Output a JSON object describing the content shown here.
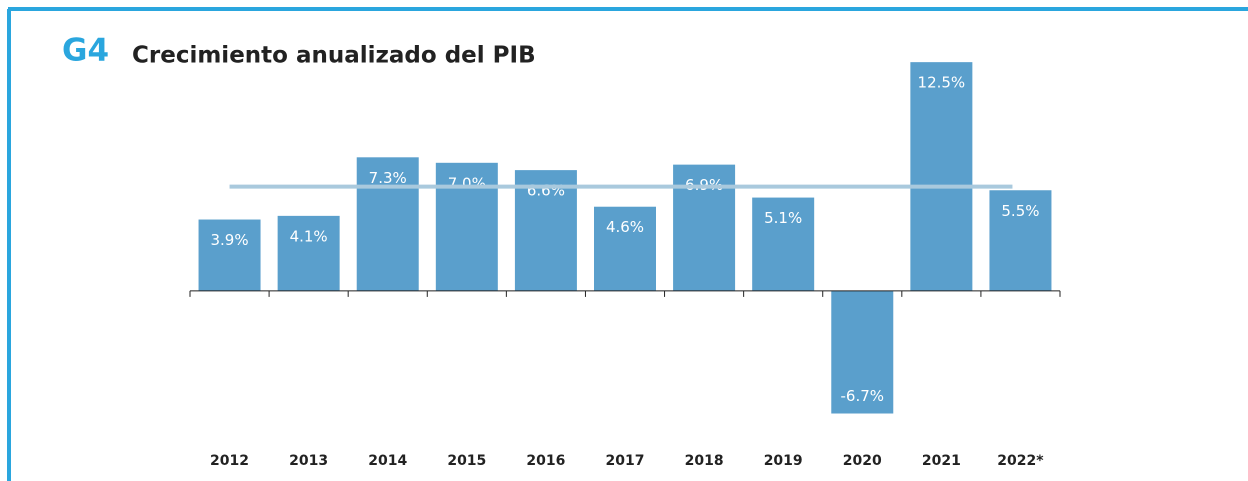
{
  "chart_data": {
    "type": "bar",
    "label": "G4",
    "title": "Crecimiento anualizado del PIB",
    "categories": [
      "2012",
      "2013",
      "2014",
      "2015",
      "2016",
      "2017",
      "2018",
      "2019",
      "2020",
      "2021",
      "2022*"
    ],
    "values": [
      3.9,
      4.1,
      7.3,
      7.0,
      6.6,
      4.6,
      6.9,
      5.1,
      -6.7,
      12.5,
      5.5
    ],
    "value_labels": [
      "3.9%",
      "4.1%",
      "7.3%",
      "7.0%",
      "6.6%",
      "4.6%",
      "6.9%",
      "5.1%",
      "-6.7%",
      "12.5%",
      "5.5%"
    ],
    "color": "#5a9fcc",
    "reference_line": 5.7,
    "reference_color": "#a9c9dd",
    "ylim": [
      -7,
      13
    ]
  }
}
